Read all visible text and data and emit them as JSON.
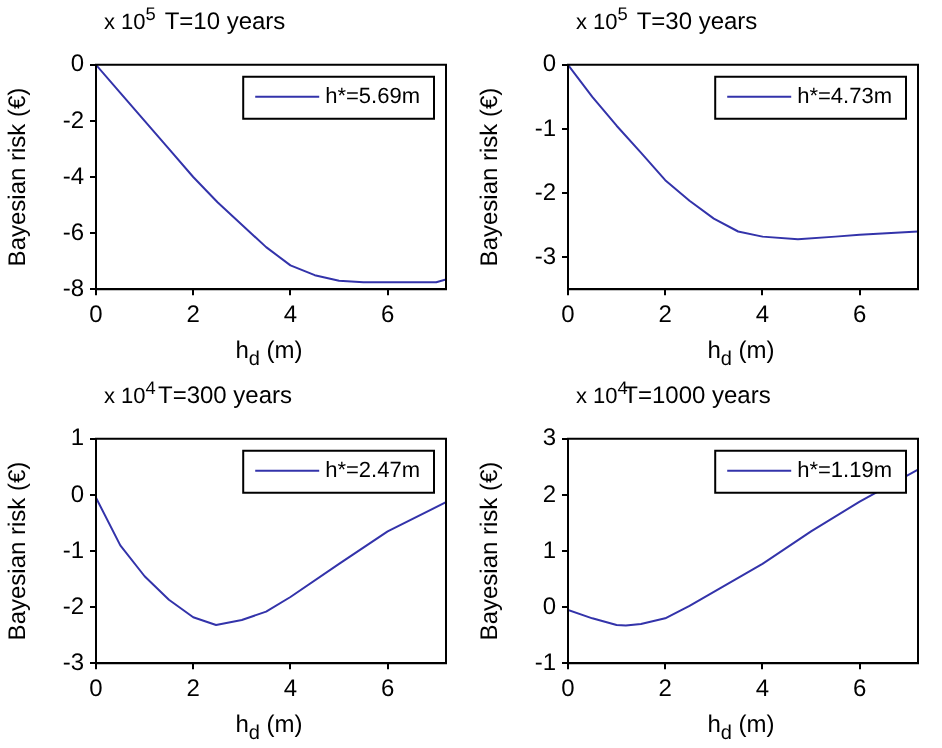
{
  "chart_data": [
    {
      "type": "line",
      "title": "T=10 years",
      "xlabel": "h$_{d}$ (m)",
      "ylabel": "Bayesian risk (€)",
      "annotations": [
        "x 10$^{5}$"
      ],
      "legend": "top right",
      "x": [
        0,
        0.5,
        1,
        1.5,
        2,
        2.5,
        3,
        3.5,
        4,
        4.5,
        5,
        5.5,
        6,
        6.5,
        7,
        7.2
      ],
      "series": [
        {
          "name": "h*=5.69m",
          "color": "#3333aa",
          "values": [
            0,
            -1.0,
            -2.0,
            -3.0,
            -4.0,
            -4.9,
            -5.7,
            -6.5,
            -7.15,
            -7.5,
            -7.7,
            -7.75,
            -7.75,
            -7.75,
            -7.75,
            -7.65
          ]
        }
      ],
      "xlim": [
        0,
        7.2
      ],
      "xticks": [
        0,
        2,
        4,
        6
      ],
      "ylim": [
        -8,
        0
      ],
      "yticks": [
        -8,
        -6,
        -4,
        -2,
        0
      ]
    },
    {
      "type": "line",
      "title": "T=30 years",
      "xlabel": "h$_{d}$ (m)",
      "ylabel": "Bayesian risk (€)",
      "annotations": [
        "x 10$^{5}$"
      ],
      "legend": "top right",
      "x": [
        0,
        0.5,
        1,
        1.5,
        2,
        2.5,
        3,
        3.5,
        4,
        4.73,
        5.5,
        6,
        7.2
      ],
      "series": [
        {
          "name": "h*=4.73m",
          "color": "#3333aa",
          "values": [
            0,
            -0.5,
            -0.95,
            -1.37,
            -1.8,
            -2.12,
            -2.4,
            -2.6,
            -2.68,
            -2.72,
            -2.68,
            -2.65,
            -2.6
          ]
        }
      ],
      "xlim": [
        0,
        7.2
      ],
      "xticks": [
        0,
        2,
        4,
        6
      ],
      "ylim": [
        -3.5,
        0
      ],
      "yticks": [
        -3,
        -2,
        -1,
        0
      ]
    },
    {
      "type": "line",
      "title": "T=300 years",
      "xlabel": "h$_{d}$ (m)",
      "ylabel": "Bayesian risk (€)",
      "annotations": [
        "x 10$^{4}$"
      ],
      "legend": "top right",
      "x": [
        0,
        0.5,
        1,
        1.5,
        2,
        2.47,
        3,
        3.5,
        4,
        5,
        6,
        7.2
      ],
      "series": [
        {
          "name": "h*=2.47m",
          "color": "#3333aa",
          "values": [
            -0.05,
            -0.9,
            -1.45,
            -1.87,
            -2.18,
            -2.32,
            -2.23,
            -2.08,
            -1.82,
            -1.23,
            -0.65,
            -0.13
          ]
        }
      ],
      "xlim": [
        0,
        7.2
      ],
      "xticks": [
        0,
        2,
        4,
        6
      ],
      "ylim": [
        -3,
        1
      ],
      "yticks": [
        -3,
        -2,
        -1,
        0,
        1
      ]
    },
    {
      "type": "line",
      "title": "T=1000 years",
      "xlabel": "h$_{d}$ (m)",
      "ylabel": "Bayesian risk (€)",
      "annotations": [
        "x 10$^{4}$"
      ],
      "legend": "top right",
      "x": [
        0,
        0.5,
        1,
        1.19,
        1.5,
        2,
        2.5,
        3,
        4,
        5,
        6,
        7.2
      ],
      "series": [
        {
          "name": "h*=1.19m",
          "color": "#3333aa",
          "values": [
            -0.05,
            -0.2,
            -0.32,
            -0.33,
            -0.3,
            -0.2,
            0.02,
            0.27,
            0.77,
            1.35,
            1.88,
            2.45
          ]
        }
      ],
      "xlim": [
        0,
        7.2
      ],
      "xticks": [
        0,
        2,
        4,
        6
      ],
      "ylim": [
        -1,
        3
      ],
      "yticks": [
        -1,
        0,
        1,
        2,
        3
      ]
    }
  ]
}
